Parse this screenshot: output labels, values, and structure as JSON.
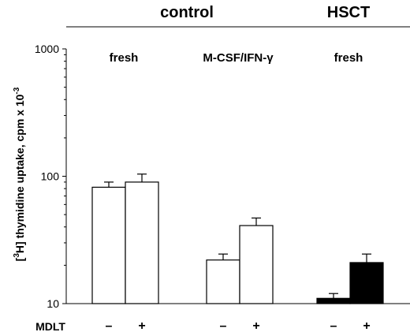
{
  "chart_data": {
    "type": "bar",
    "title": "",
    "group_headers": [
      "control",
      "HSCT"
    ],
    "conditions": [
      "fresh",
      "M-CSF/IFN-γ",
      "fresh"
    ],
    "ylabel_prefix": "[",
    "ylabel_sup1": "3",
    "ylabel_main": "H] thymidine uptake, cpm x 10",
    "ylabel_sup2": "-3",
    "yscale": "log",
    "ylim": [
      10,
      1000
    ],
    "yticks": [
      "10",
      "100",
      "1000"
    ],
    "xlabel": "MDLT",
    "bars": [
      {
        "group": 0,
        "mdlt": "–",
        "value": 82,
        "error": 8,
        "fill": "#ffffff"
      },
      {
        "group": 0,
        "mdlt": "+",
        "value": 90,
        "error": 14,
        "fill": "#ffffff"
      },
      {
        "group": 1,
        "mdlt": "–",
        "value": 22,
        "error": 2.5,
        "fill": "#ffffff"
      },
      {
        "group": 1,
        "mdlt": "+",
        "value": 41,
        "error": 6,
        "fill": "#ffffff"
      },
      {
        "group": 2,
        "mdlt": "–",
        "value": 11,
        "error": 1,
        "fill": "#000000"
      },
      {
        "group": 2,
        "mdlt": "+",
        "value": 21,
        "error": 3.5,
        "fill": "#000000"
      }
    ],
    "grid": false,
    "legend": "none"
  }
}
